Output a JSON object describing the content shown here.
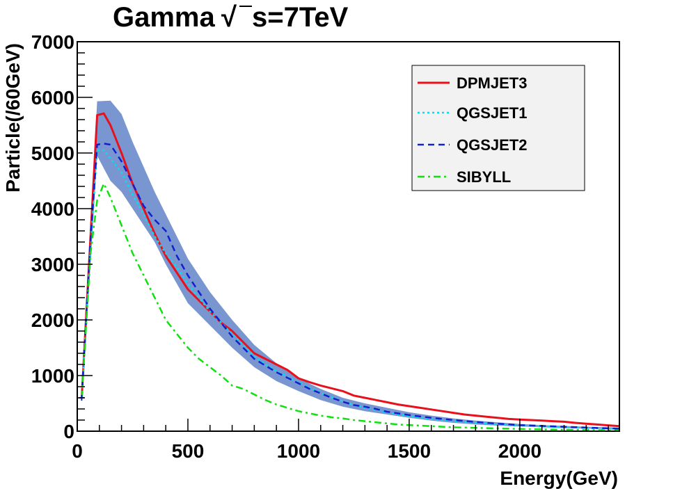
{
  "chart_data": {
    "type": "line",
    "title": "Gamma",
    "title_sqrt_symbol": "√",
    "title_suffix": "s=7TeV",
    "xlabel": "Energy(GeV)",
    "ylabel": "Particle(/60GeV)",
    "xlim": [
      0,
      2450
    ],
    "ylim": [
      0,
      7000
    ],
    "xticks": [
      0,
      500,
      1000,
      1500,
      2000
    ],
    "xtick_labels": [
      "0",
      "500",
      "1000",
      "1500",
      "2000"
    ],
    "yticks": [
      0,
      1000,
      2000,
      3000,
      4000,
      5000,
      6000,
      7000
    ],
    "ytick_labels": [
      "0",
      "1000",
      "2000",
      "3000",
      "4000",
      "5000",
      "6000",
      "7000"
    ],
    "legend_position": "top-right",
    "band": {
      "color": "#7a96d0",
      "x": [
        20,
        60,
        90,
        150,
        200,
        250,
        300,
        350,
        400,
        450,
        500,
        600,
        700,
        800,
        900,
        1000,
        1100,
        1200,
        1300,
        1400,
        1500,
        1600,
        1700,
        1800,
        1900,
        2000,
        2100,
        2200,
        2300,
        2450
      ],
      "upper": [
        700,
        3800,
        5930,
        5940,
        5700,
        5200,
        4750,
        4300,
        3900,
        3500,
        3100,
        2500,
        2000,
        1550,
        1220,
        950,
        760,
        600,
        500,
        420,
        340,
        280,
        230,
        190,
        160,
        130,
        110,
        95,
        80,
        65
      ],
      "lower": [
        500,
        3000,
        4950,
        4500,
        4300,
        4000,
        3700,
        3400,
        3000,
        2650,
        2300,
        1900,
        1500,
        1150,
        900,
        720,
        560,
        440,
        360,
        300,
        240,
        190,
        150,
        120,
        100,
        85,
        70,
        55,
        45,
        35
      ]
    },
    "series": [
      {
        "name": "DPMJET3",
        "color": "#e8101a",
        "style": "solid",
        "x": [
          20,
          60,
          90,
          120,
          150,
          200,
          250,
          300,
          350,
          400,
          450,
          500,
          550,
          600,
          650,
          700,
          750,
          800,
          850,
          900,
          950,
          1000,
          1050,
          1100,
          1150,
          1200,
          1250,
          1300,
          1350,
          1400,
          1450,
          1500,
          1550,
          1600,
          1650,
          1700,
          1750,
          1800,
          1850,
          1900,
          1950,
          2000,
          2050,
          2100,
          2150,
          2200,
          2250,
          2300,
          2350,
          2400,
          2450
        ],
        "y": [
          600,
          3500,
          5680,
          5710,
          5500,
          5000,
          4450,
          4000,
          3550,
          3150,
          2850,
          2550,
          2350,
          2150,
          1950,
          1800,
          1600,
          1400,
          1300,
          1200,
          1100,
          950,
          880,
          820,
          770,
          720,
          640,
          600,
          560,
          520,
          480,
          450,
          420,
          390,
          360,
          330,
          300,
          280,
          260,
          240,
          220,
          210,
          200,
          190,
          180,
          170,
          150,
          135,
          120,
          105,
          90
        ]
      },
      {
        "name": "QGSJET1",
        "color": "#00e0f0",
        "style": "dotted",
        "x": [
          20,
          60,
          90,
          120,
          150,
          200,
          250,
          300,
          350,
          400,
          450,
          500,
          550,
          600,
          650,
          700,
          750,
          800,
          850,
          900,
          950,
          1000,
          1050,
          1100,
          1150,
          1200,
          1250,
          1300,
          1350,
          1400,
          1450,
          1500,
          1600,
          1700,
          1800,
          1900,
          2000,
          2100,
          2200,
          2300,
          2450
        ],
        "y": [
          600,
          3300,
          5050,
          5050,
          4900,
          4650,
          4250,
          3900,
          3500,
          3200,
          2950,
          2650,
          2400,
          2150,
          1950,
          1750,
          1550,
          1350,
          1200,
          1080,
          980,
          880,
          780,
          690,
          610,
          540,
          470,
          420,
          380,
          340,
          300,
          270,
          220,
          180,
          150,
          120,
          100,
          85,
          70,
          55,
          40
        ]
      },
      {
        "name": "QGSJET2",
        "color": "#1020d0",
        "style": "dashed",
        "x": [
          20,
          60,
          90,
          120,
          150,
          200,
          250,
          300,
          350,
          400,
          450,
          500,
          550,
          600,
          650,
          700,
          750,
          800,
          850,
          900,
          950,
          1000,
          1050,
          1100,
          1150,
          1200,
          1250,
          1300,
          1350,
          1400,
          1450,
          1500,
          1600,
          1700,
          1800,
          1900,
          2000,
          2100,
          2200,
          2300,
          2450
        ],
        "y": [
          600,
          3450,
          5150,
          5170,
          5150,
          4850,
          4450,
          4050,
          3800,
          3600,
          3150,
          2800,
          2500,
          2200,
          1950,
          1700,
          1500,
          1300,
          1180,
          1060,
          960,
          860,
          760,
          680,
          600,
          530,
          470,
          440,
          400,
          350,
          320,
          290,
          240,
          200,
          165,
          135,
          110,
          95,
          80,
          65,
          45
        ]
      },
      {
        "name": "SIBYLL",
        "color": "#10e010",
        "style": "dashdot",
        "x": [
          20,
          60,
          90,
          120,
          150,
          200,
          250,
          300,
          350,
          400,
          450,
          500,
          550,
          600,
          650,
          700,
          750,
          800,
          850,
          900,
          950,
          1000,
          1050,
          1100,
          1150,
          1200,
          1250,
          1300,
          1350,
          1400,
          1450,
          1500,
          1600,
          1700,
          1800,
          1900,
          2000,
          2100,
          2200,
          2300,
          2450
        ],
        "y": [
          600,
          3200,
          4150,
          4450,
          4200,
          3700,
          3200,
          2800,
          2400,
          2000,
          1750,
          1500,
          1300,
          1150,
          1000,
          820,
          760,
          660,
          560,
          480,
          420,
          360,
          320,
          280,
          250,
          230,
          200,
          180,
          160,
          140,
          120,
          110,
          90,
          70,
          60,
          50,
          40,
          32,
          25,
          20,
          15
        ]
      }
    ]
  }
}
